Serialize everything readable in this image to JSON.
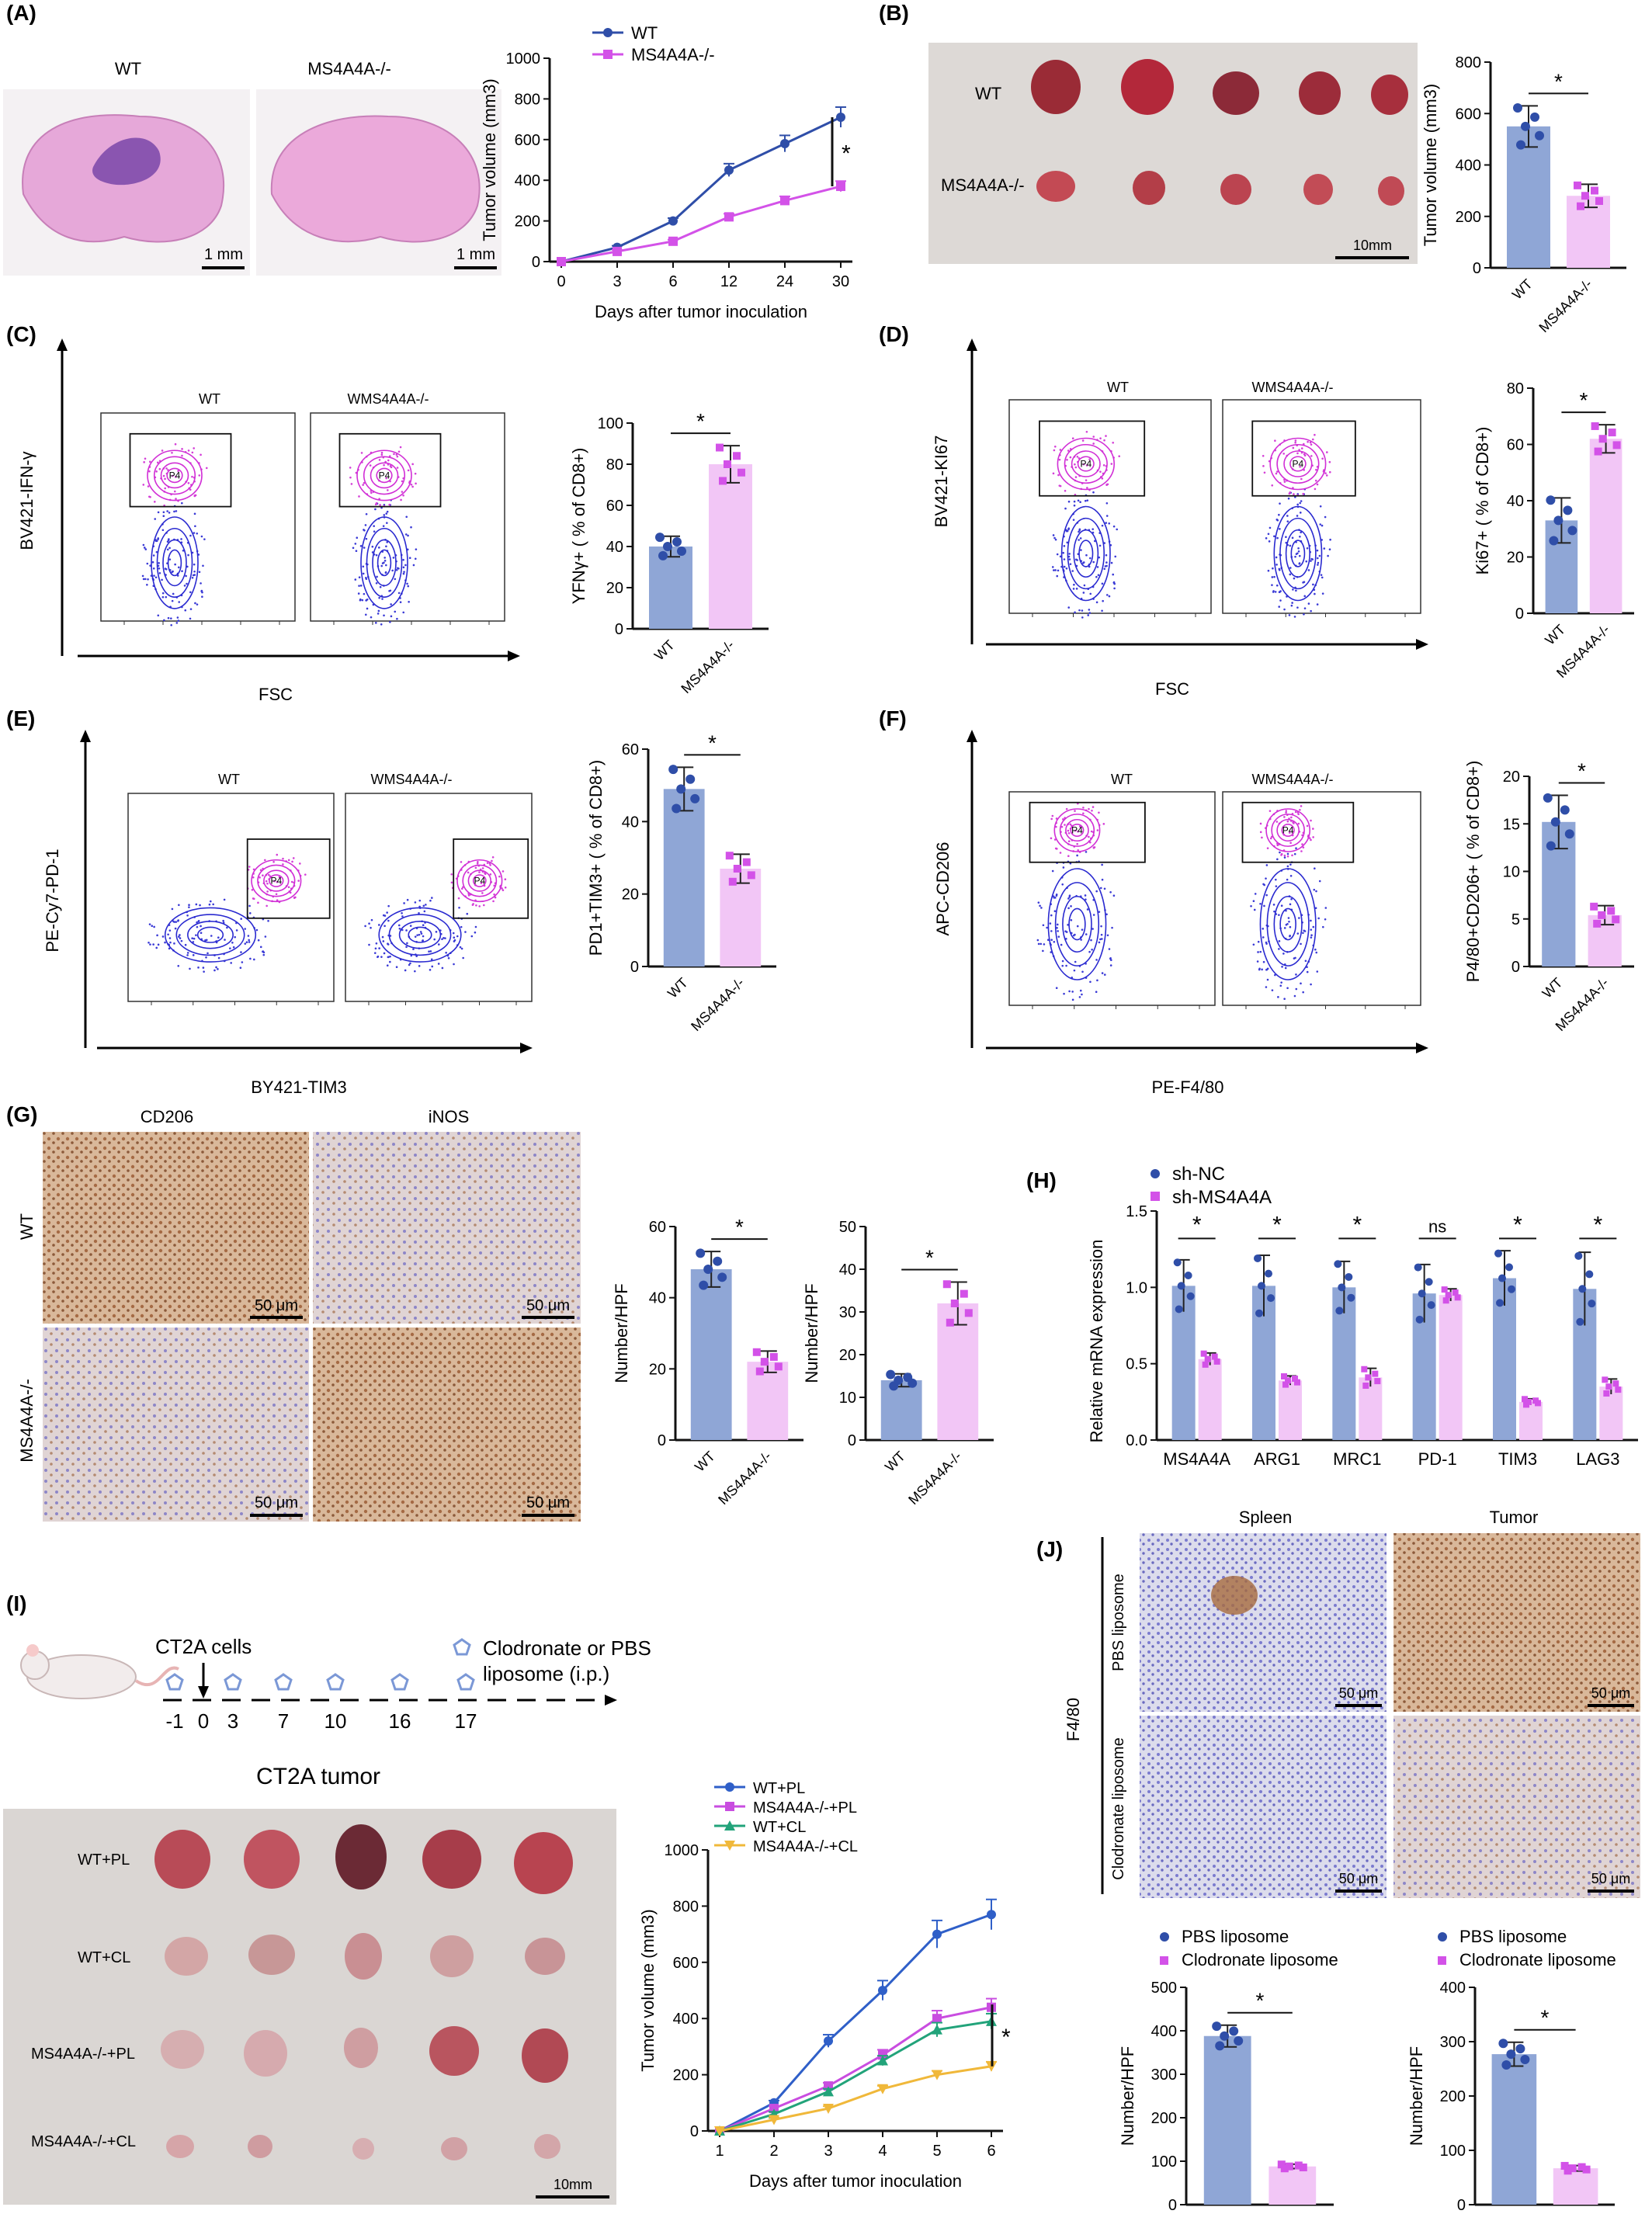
{
  "colors": {
    "wt": "#2f4ea8",
    "ko": "#d352e8",
    "wt_bar": "#8fa6d6",
    "ko_bar": "#f2c6f6",
    "he_pink": "#e9a7d6",
    "ihc_brown": "#b27a52",
    "ihc_blue": "#8a8ad8"
  },
  "panels": {
    "A": {
      "label": "(A)",
      "img_left": "WT",
      "img_right": "MS4A4A-/-",
      "scale_left": "1 mm",
      "scale_right": "1 mm"
    },
    "B": {
      "label": "(B)",
      "row1": "WT",
      "row2": "MS4A4A-/-",
      "scale": "10mm"
    },
    "C": {
      "label": "(C)",
      "ylab": "BV421-IFN-γ",
      "xlab": "FSC",
      "g1": "WT",
      "g2": "WMS4A4A-/-",
      "gate": "P4"
    },
    "D": {
      "label": "(D)",
      "ylab": "BV421-KI67",
      "xlab": "FSC",
      "g1": "WT",
      "g2": "WMS4A4A-/-",
      "gate": "P4"
    },
    "E": {
      "label": "(E)",
      "ylab": "PE-Cy7-PD-1",
      "xlab": "BY421-TIM3",
      "g1": "WT",
      "g2": "WMS4A4A-/-",
      "gate": "P4"
    },
    "F": {
      "label": "(F)",
      "ylab": "APC-CD206",
      "xlab": "PE-F4/80",
      "g1": "WT",
      "g2": "WMS4A4A-/-",
      "gate": "P4"
    },
    "G": {
      "label": "(G)",
      "col1": "CD206",
      "col2": "iNOS",
      "row1": "WT",
      "row2": "MS4A4A-/-",
      "scale": "50 μm"
    },
    "H": {
      "label": "(H)"
    },
    "I": {
      "label": "(I)",
      "cells": "CT2A cells",
      "treat": "Clodronate or PBS",
      "treat2": "liposome (i.p.)",
      "days": [
        "-1",
        "0",
        "3",
        "7",
        "10",
        "16",
        "17"
      ],
      "photo_title": "CT2A tumor",
      "rows": [
        "WT+PL",
        "WT+CL",
        "MS4A4A-/-+PL",
        "MS4A4A-/-+CL"
      ],
      "scale": "10mm"
    },
    "J": {
      "label": "(J)",
      "col1": "Spleen",
      "col2": "Tumor",
      "row1": "PBS liposome",
      "row2": "Clodronate liposome",
      "side": "F4/80",
      "scale": "50 μm"
    }
  },
  "chart_data": [
    {
      "id": "A-line",
      "type": "line",
      "x": [
        0,
        3,
        6,
        12,
        24,
        30
      ],
      "series": [
        {
          "name": "WT",
          "values": [
            0,
            70,
            200,
            450,
            580,
            710
          ]
        },
        {
          "name": "MS4A4A-/-",
          "values": [
            0,
            50,
            100,
            220,
            300,
            370
          ]
        }
      ],
      "xlabel": "Days after tumor inoculation",
      "ylabel": "Tumor volume (mm3)",
      "ylim": [
        0,
        1000
      ],
      "yticks": [
        0,
        200,
        400,
        600,
        800,
        1000
      ],
      "sig": "*"
    },
    {
      "id": "B-bar",
      "type": "bar",
      "categories": [
        "WT",
        "MS4A4A-/-"
      ],
      "values": [
        550,
        280
      ],
      "errors": [
        80,
        45
      ],
      "ylabel": "Tumor volume (mm3)",
      "ylim": [
        0,
        800
      ],
      "yticks": [
        0,
        200,
        400,
        600,
        800
      ],
      "sig": "*"
    },
    {
      "id": "C-bar",
      "type": "bar",
      "categories": [
        "WT",
        "MS4A4A-/-"
      ],
      "values": [
        40,
        80
      ],
      "errors": [
        5,
        9
      ],
      "ylabel": "YFNγ+ ( % of CD8+)",
      "ylim": [
        0,
        100
      ],
      "yticks": [
        0,
        20,
        40,
        60,
        80,
        100
      ],
      "sig": "*"
    },
    {
      "id": "D-bar",
      "type": "bar",
      "categories": [
        "WT",
        "MS4A4A-/-"
      ],
      "values": [
        33,
        62
      ],
      "errors": [
        8,
        5
      ],
      "ylabel": "Ki67+ ( % of CD8+)",
      "ylim": [
        0,
        80
      ],
      "yticks": [
        0,
        20,
        40,
        60,
        80
      ],
      "sig": "*"
    },
    {
      "id": "E-bar",
      "type": "bar",
      "categories": [
        "WT",
        "MS4A4A-/-"
      ],
      "values": [
        49,
        27
      ],
      "errors": [
        6,
        4
      ],
      "ylabel": "PD1+TIM3+ ( % of CD8+)",
      "ylim": [
        0,
        60
      ],
      "yticks": [
        0,
        20,
        40,
        60
      ],
      "sig": "*"
    },
    {
      "id": "F-bar",
      "type": "bar",
      "categories": [
        "WT",
        "MS4A4A-/-"
      ],
      "values": [
        15.2,
        5.4
      ],
      "errors": [
        2.8,
        1
      ],
      "ylabel": "P4/80+CD206+ ( % of CD8+)",
      "ylim": [
        0,
        20
      ],
      "yticks": [
        0,
        5,
        10,
        15,
        20
      ],
      "sig": "*"
    },
    {
      "id": "G-bar1",
      "type": "bar",
      "categories": [
        "WT",
        "MS4A4A-/-"
      ],
      "values": [
        48,
        22
      ],
      "errors": [
        5,
        3
      ],
      "ylabel": "Number/HPF",
      "ylim": [
        0,
        60
      ],
      "yticks": [
        0,
        20,
        40,
        60
      ],
      "sig": "*"
    },
    {
      "id": "G-bar2",
      "type": "bar",
      "categories": [
        "WT",
        "MS4A4A-/-"
      ],
      "values": [
        14,
        32
      ],
      "errors": [
        1.5,
        5
      ],
      "ylabel": "Number/HPF",
      "ylim": [
        0,
        50
      ],
      "yticks": [
        0,
        10,
        20,
        30,
        40,
        50
      ],
      "sig": "*"
    },
    {
      "id": "H-bar",
      "type": "bar",
      "categories": [
        "MS4A4A",
        "ARG1",
        "MRC1",
        "PD-1",
        "TIM3",
        "LAG3"
      ],
      "series": [
        {
          "name": "sh-NC",
          "values": [
            1.01,
            1.01,
            1.0,
            0.96,
            1.06,
            0.99
          ],
          "errors": [
            0.17,
            0.2,
            0.17,
            0.19,
            0.18,
            0.24
          ]
        },
        {
          "name": "sh-MS4A4A",
          "values": [
            0.53,
            0.39,
            0.41,
            0.95,
            0.25,
            0.35
          ],
          "errors": [
            0.04,
            0.03,
            0.06,
            0.04,
            0.02,
            0.05
          ]
        }
      ],
      "sig": [
        "*",
        "*",
        "*",
        "ns",
        "*",
        "*"
      ],
      "ylabel": "Relative mRNA expression",
      "ylim": [
        0,
        1.5
      ],
      "yticks": [
        0.0,
        0.5,
        1.0,
        1.5
      ]
    },
    {
      "id": "I-line",
      "type": "line",
      "x": [
        1,
        2,
        3,
        4,
        5,
        6
      ],
      "series": [
        {
          "name": "WT+PL",
          "values": [
            0,
            100,
            320,
            500,
            700,
            770
          ]
        },
        {
          "name": "MS4A4A-/-+PL",
          "values": [
            0,
            80,
            160,
            270,
            400,
            440
          ]
        },
        {
          "name": "WT+CL",
          "values": [
            0,
            60,
            140,
            250,
            360,
            390
          ]
        },
        {
          "name": "MS4A4A-/-+CL",
          "values": [
            0,
            40,
            80,
            150,
            200,
            230
          ]
        }
      ],
      "colors": [
        "#2f5fc8",
        "#c94de0",
        "#22a37a",
        "#f0b83a"
      ],
      "xlabel": "Days after tumor inoculation",
      "ylabel": "Tumor volume (mm3)",
      "ylim": [
        0,
        1000
      ],
      "yticks": [
        0,
        200,
        400,
        600,
        800,
        1000
      ],
      "sig": "*"
    },
    {
      "id": "J-bar1",
      "type": "bar",
      "categories": [
        "PBS liposome",
        "Clodronate liposome"
      ],
      "values": [
        388,
        88
      ],
      "errors": [
        25,
        5
      ],
      "ylabel": "Number/HPF",
      "ylim": [
        0,
        500
      ],
      "yticks": [
        0,
        100,
        200,
        300,
        400,
        500
      ],
      "sig": "*"
    },
    {
      "id": "J-bar2",
      "type": "bar",
      "categories": [
        "PBS liposome",
        "Clodronate liposome"
      ],
      "values": [
        277,
        67
      ],
      "errors": [
        22,
        5
      ],
      "ylabel": "Number/HPF",
      "ylim": [
        0,
        400
      ],
      "yticks": [
        0,
        100,
        200,
        300,
        400
      ],
      "sig": "*"
    }
  ]
}
